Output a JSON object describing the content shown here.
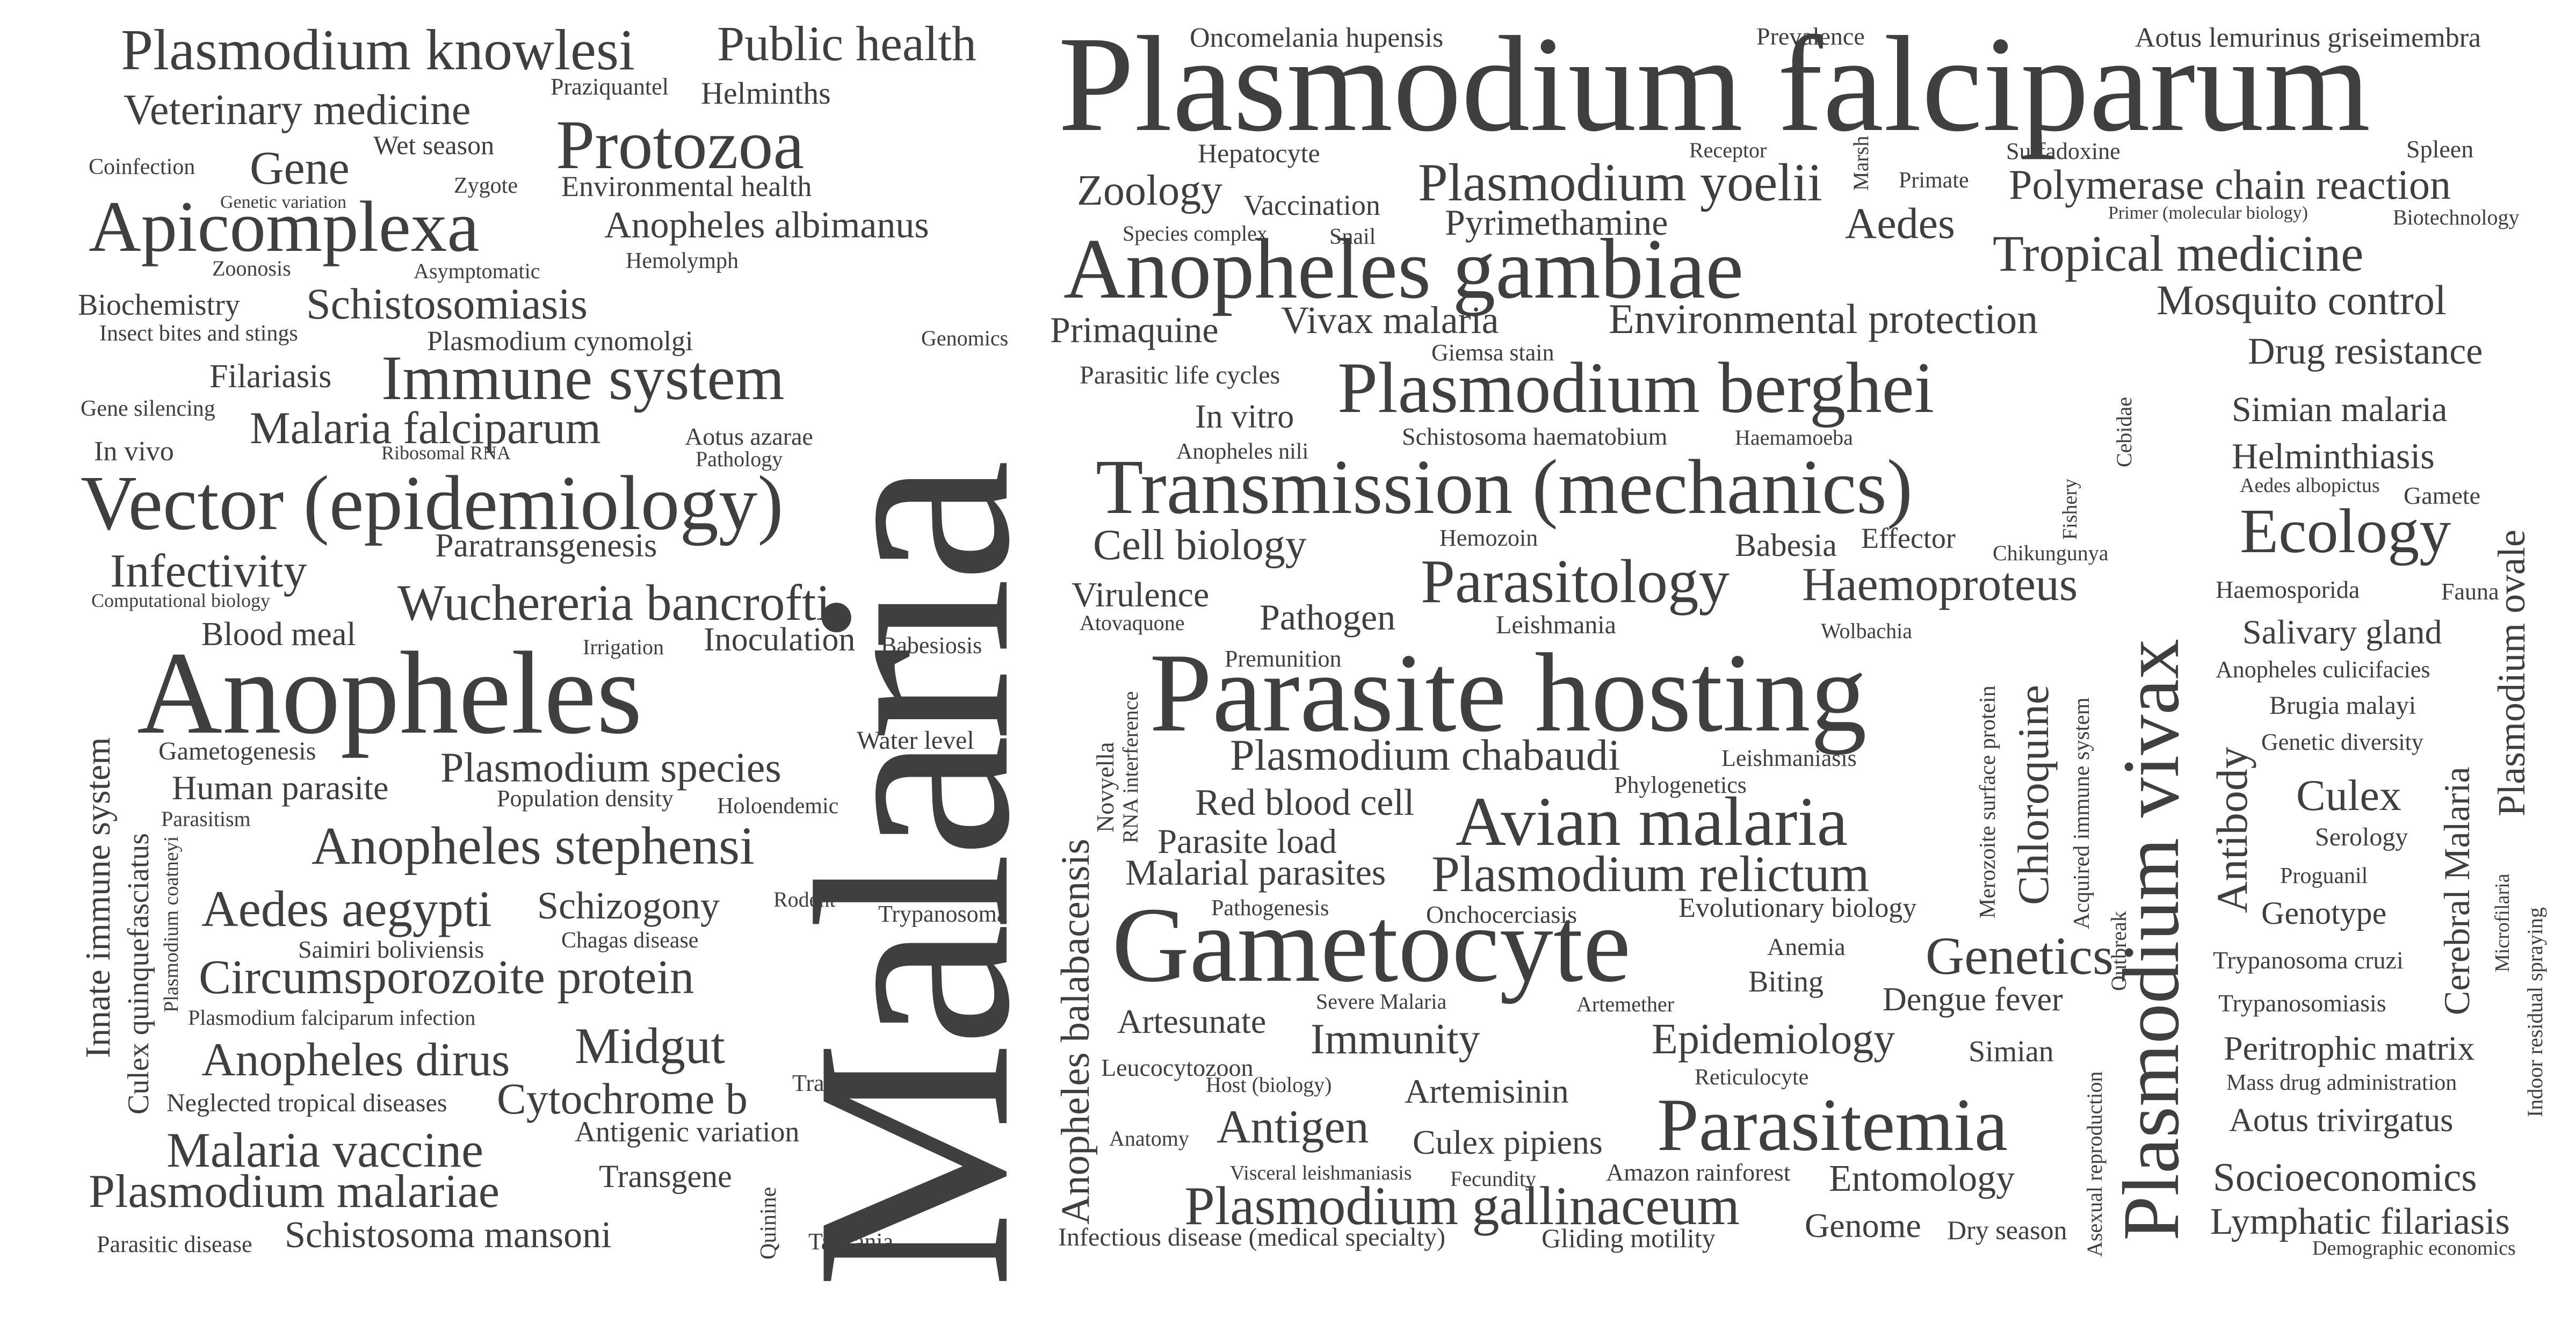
{
  "cloud": {
    "color": "#3f3f3f",
    "background": "#ffffff",
    "words": [
      "Malaria",
      "Plasmodium falciparum",
      "Parasite hosting",
      "Anopheles",
      "Gametocyte",
      "Plasmodium vivax",
      "Anopheles gambiae",
      "Transmission (mechanics)",
      "Vector (epidemiology)",
      "Plasmodium berghei",
      "Apicomplexa",
      "Avian malaria",
      "Parasitemia",
      "Protozoa",
      "Immune system",
      "Plasmodium knowlesi",
      "Parasitology",
      "Plasmodium yoelii",
      "Plasmodium gallinaceum",
      "Anopheles stephensi",
      "Ecology",
      "Plasmodium relictum",
      "Public health",
      "Wuchereria bancrofti",
      "Circumsporozoite protein",
      "Plasmodium chabaudi",
      "Aedes aegypti",
      "Malaria vaccine",
      "Tropical medicine",
      "Genetics",
      "Plasmodium malariae",
      "Polymerase chain reaction",
      "Anopheles dirus",
      "Haemoproteus",
      "Midgut",
      "Veterinary medicine",
      "Schistosomiasis",
      "Cytochrome b",
      "Malaria falciparum",
      "Plasmodium species",
      "Infectivity",
      "Mosquito control",
      "Environmental protection",
      "Epidemiology",
      "Immunity",
      "Anopheles balabacensis",
      "Chloroquine",
      "Antibody",
      "Drug resistance",
      "Zoology",
      "Cell biology",
      "Red blood cell",
      "Culex",
      "Aedes",
      "Antigen",
      "Malarial parasites",
      "Plasmodium ovale",
      "Parasite load",
      "Gene",
      "Schizogony",
      "Anopheles albimanus",
      "Pathogen",
      "Cerebral Malaria",
      "Vivax malaria",
      "Innate immune system",
      "Schistosoma mansoni",
      "Entomology",
      "Pyrimethamine",
      "Lymphatic filariasis",
      "Socioeconomics",
      "Simian malaria",
      "Helminthiasis",
      "Virulence",
      "Primaquine",
      "Salivary gland",
      "Artemisinin",
      "Human parasite",
      "Culex pipiens",
      "Genome",
      "Artesunate",
      "Peritrophic matrix",
      "Dengue fever",
      "Transgene",
      "Aotus trivirgatus",
      "Blood meal",
      "Inoculation",
      "Filariasis",
      "Paratransgenesis",
      "Genotype",
      "Babesia",
      "Biochemistry",
      "Culex quinquefasciatus",
      "In vitro",
      "Environmental health",
      "Helminths",
      "Biting",
      "Vaccination",
      "Simian",
      "Effector",
      "Oncomelania hupensis",
      "Prevalence",
      "Aotus lemurinus griseimembra",
      "Spleen",
      "Sulfadoxine",
      "Receptor",
      "Marsh",
      "Hepatocyte",
      "Primate",
      "Primer (molecular biology)",
      "Biotechnology",
      "Species complex",
      "Snail",
      "Giemsa stain",
      "Genomics",
      "Parasitic life cycles",
      "Cebidae",
      "Schistosoma haematobium",
      "Haemamoeba",
      "Anopheles nili",
      "Aedes albopictus",
      "Gamete",
      "Fishery",
      "Hemozoin",
      "Chikungunya",
      "Atovaquone",
      "Leishmania",
      "Haemosporida",
      "Fauna",
      "Wolbachia",
      "Premunition",
      "Anopheles culicifacies",
      "Brugia malayi",
      "Genetic diversity",
      "Merozoite surface protein",
      "Acquired immune system",
      "Leishmaniasis",
      "Phylogenetics",
      "Novyella",
      "RNA interference",
      "Serology",
      "Proguanil",
      "Microfilaria",
      "Indoor residual spraying",
      "Outbreak",
      "Pathogenesis",
      "Onchocerciasis",
      "Evolutionary biology",
      "Anemia",
      "Trypanosoma cruzi",
      "Trypanosomiasis",
      "Severe Malaria",
      "Artemether",
      "Leucocytozoon",
      "Host (biology)",
      "Reticulocyte",
      "Mass drug administration",
      "Anatomy",
      "Visceral leishmaniasis",
      "Fecundity",
      "Amazon rainforest",
      "Asexual reproduction",
      "Infectious disease (medical specialty)",
      "Gliding motility",
      "Dry season",
      "Demographic economics",
      "Tanzania",
      "Quinine",
      "Parasitic disease",
      "Transcriptome",
      "Antigenic variation",
      "Neglected tropical diseases",
      "Plasmodium falciparum infection",
      "Plasmodium coatneyi",
      "Saimiri boliviensis",
      "Chagas disease",
      "Rodent",
      "Trypanosoma",
      "Population density",
      "Holoendemic",
      "Parasitism",
      "Gametogenesis",
      "Water level",
      "Irrigation",
      "Babesiosis",
      "Computational biology",
      "In vivo",
      "Ribosomal RNA",
      "Aotus azarae",
      "Pathology",
      "Gene silencing",
      "Insect bites and stings",
      "Plasmodium cynomolgi",
      "Zoonosis",
      "Asymptomatic",
      "Hemolymph",
      "Genetic variation",
      "Coinfection",
      "Zygote",
      "Wet season",
      "Praziquantel"
    ]
  }
}
